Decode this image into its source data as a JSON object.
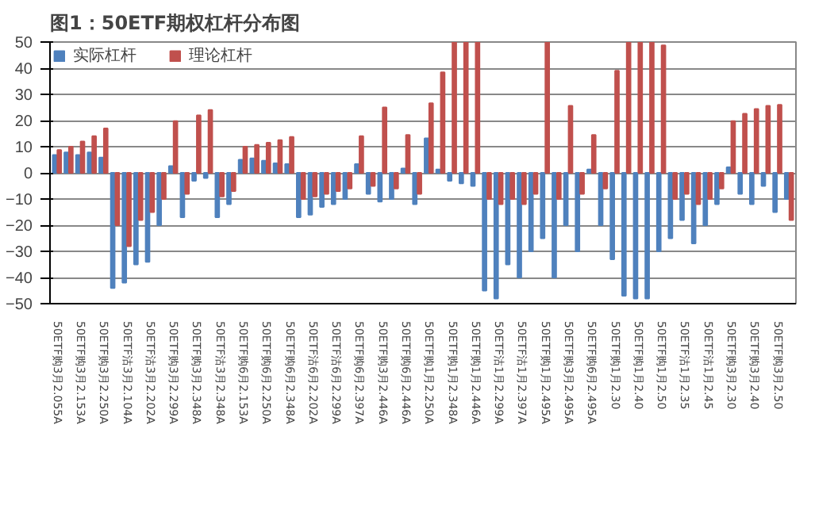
{
  "chart_data": {
    "type": "bar",
    "title": "图1：50ETF期权杠杆分布图",
    "categories": [
      "50ETF购3月2.055A",
      null,
      "50ETF购3月2.153A",
      null,
      "50ETF购3月2.250A",
      null,
      "50ETF沽3月2.104A",
      null,
      "50ETF沽3月2.202A",
      null,
      "50ETF购3月2.299A",
      null,
      "50ETF购3月2.348A",
      null,
      "50ETF沽3月2.348A",
      null,
      "50ETF购6月2.153A",
      null,
      "50ETF购6月2.250A",
      null,
      "50ETF购6月2.348A",
      null,
      "50ETF沽6月2.202A",
      null,
      "50ETF沽6月2.299A",
      null,
      "50ETF购6月2.397A",
      null,
      "50ETF购3月2.446A",
      null,
      "50ETF购6月2.446A",
      null,
      "50ETF购1月2.250A",
      null,
      "50ETF购1月2.348A",
      null,
      "50ETF购1月2.446A",
      null,
      "50ETF沽1月2.299A",
      null,
      "50ETF沽1月2.397A",
      null,
      "50ETF购1月2.495A",
      null,
      "50ETF购3月2.495A",
      null,
      "50ETF购6月2.495A",
      null,
      "50ETF购1月2.30",
      null,
      "50ETF购1月2.40",
      null,
      "50ETF购1月2.50",
      null,
      "50ETF沽1月2.35",
      null,
      "50ETF沽1月2.45",
      null,
      "50ETF购3月2.30",
      null,
      "50ETF购3月2.40",
      null,
      "50ETF购3月2.50",
      null
    ],
    "series": [
      {
        "name": "实际杠杆",
        "color": "#4f81bd",
        "values": [
          6.8,
          7.8,
          6.8,
          7.8,
          5.8,
          -44,
          -42,
          -35,
          -34,
          -20,
          2.6,
          -17,
          -3,
          -2,
          -17,
          -12,
          5,
          5.5,
          4.6,
          3.6,
          3.3,
          -17,
          -16,
          -13,
          -12,
          -10,
          3.3,
          -8,
          -11,
          -10,
          1.7,
          -12,
          13.2,
          1.3,
          -3,
          -4,
          -5,
          -45,
          -48,
          -35,
          -40,
          -30,
          -25,
          -40,
          -20,
          -30,
          1.3,
          -20,
          -33,
          -47,
          -48,
          -48,
          -30,
          -25,
          -18,
          -27,
          -20,
          -12,
          2.1,
          -8,
          -12,
          -5,
          -15,
          -10
        ]
      },
      {
        "name": "理论杠杆",
        "color": "#c0504d",
        "values": [
          8.7,
          10,
          12,
          14,
          17,
          -20,
          -28,
          -18,
          -15,
          -10,
          19.8,
          -8,
          22,
          24,
          -9,
          -7,
          10,
          10.7,
          11.5,
          12.5,
          13.7,
          -10,
          -9,
          -8,
          -7,
          -6,
          14,
          -5,
          25,
          -6,
          14.5,
          -8,
          26.6,
          38.4,
          50,
          50,
          50,
          -10,
          -12,
          -10,
          -12,
          -8,
          50,
          -10,
          25.6,
          -8,
          14.5,
          -6,
          39,
          50,
          50,
          50,
          48.7,
          -10,
          -8,
          -12,
          -10,
          -6,
          19.8,
          22.6,
          24.4,
          25.6,
          26,
          -18
        ]
      }
    ],
    "ylim": [
      -50,
      50
    ],
    "yticks": [
      -50,
      -40,
      -30,
      -20,
      -10,
      0,
      10,
      20,
      30,
      40,
      50
    ],
    "grid": "y",
    "legend": "top left"
  }
}
